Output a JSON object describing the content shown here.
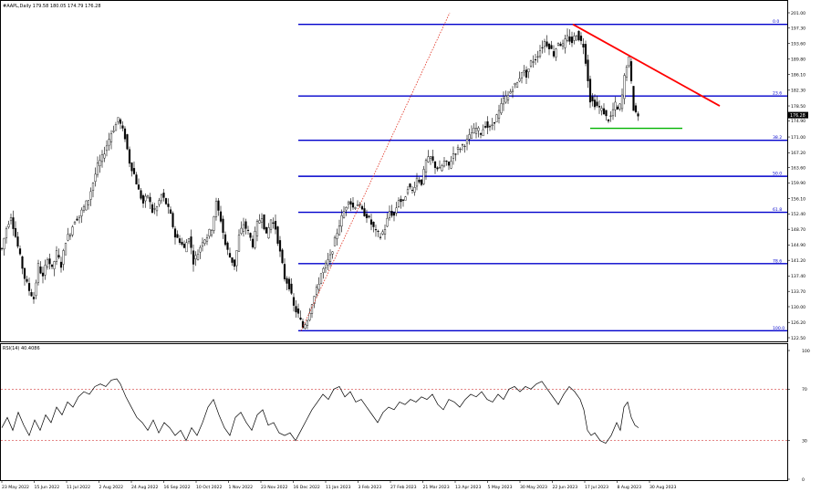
{
  "header": {
    "title": "#AAPL,Daily  179.58 180.05 174.79 176.28",
    "rsi_title": "RSI(14) 40.4086",
    "current_price": "176.28"
  },
  "chart_data": [
    {
      "type": "candlestick",
      "symbol": "#AAPL",
      "timeframe": "Daily",
      "ohlc_last": {
        "open": 179.58,
        "high": 180.05,
        "low": 174.79,
        "close": 176.28
      },
      "ylim": [
        122.5,
        201.0
      ],
      "y_ticks": [
        "201.00",
        "197.30",
        "193.60",
        "189.80",
        "186.10",
        "182.30",
        "178.50",
        "174.90",
        "171.00",
        "167.20",
        "163.60",
        "159.90",
        "156.10",
        "152.40",
        "148.70",
        "144.90",
        "141.20",
        "137.40",
        "133.70",
        "130.00",
        "126.20",
        "122.50"
      ],
      "x_ticks": [
        "23 May 2022",
        "15 Jun 2022",
        "11 Jul 2022",
        "2 Aug 2022",
        "24 Aug 2022",
        "16 Sep 2022",
        "10 Oct 2022",
        "1 Nov 2022",
        "23 Nov 2022",
        "16 Dec 2022",
        "11 Jan 2023",
        "3 Feb 2023",
        "27 Feb 2023",
        "21 Mar 2023",
        "13 Apr 2023",
        "5 May 2023",
        "30 May 2023",
        "22 Jun 2023",
        "17 Jul 2023",
        "8 Aug 2023",
        "30 Aug 2023"
      ],
      "price_path": [
        [
          0,
          144
        ],
        [
          5,
          149
        ],
        [
          10,
          152
        ],
        [
          15,
          147
        ],
        [
          20,
          142
        ],
        [
          25,
          137
        ],
        [
          30,
          134
        ],
        [
          35,
          132
        ],
        [
          40,
          140
        ],
        [
          45,
          137
        ],
        [
          50,
          142
        ],
        [
          55,
          139
        ],
        [
          60,
          143
        ],
        [
          65,
          140
        ],
        [
          70,
          146
        ],
        [
          75,
          148
        ],
        [
          80,
          151
        ],
        [
          85,
          152
        ],
        [
          90,
          154
        ],
        [
          95,
          156
        ],
        [
          100,
          160
        ],
        [
          105,
          164
        ],
        [
          110,
          166
        ],
        [
          115,
          169
        ],
        [
          120,
          172
        ],
        [
          125,
          174
        ],
        [
          128,
          176
        ],
        [
          130,
          174
        ],
        [
          135,
          171
        ],
        [
          140,
          165
        ],
        [
          145,
          162
        ],
        [
          150,
          158
        ],
        [
          155,
          155
        ],
        [
          160,
          157
        ],
        [
          165,
          153
        ],
        [
          170,
          154
        ],
        [
          175,
          157
        ],
        [
          180,
          155
        ],
        [
          185,
          152
        ],
        [
          190,
          147
        ],
        [
          195,
          146
        ],
        [
          200,
          144
        ],
        [
          205,
          147
        ],
        [
          210,
          141
        ],
        [
          215,
          143
        ],
        [
          220,
          146
        ],
        [
          225,
          147
        ],
        [
          230,
          149
        ],
        [
          235,
          155
        ],
        [
          240,
          151
        ],
        [
          245,
          145
        ],
        [
          250,
          142
        ],
        [
          255,
          140
        ],
        [
          260,
          147
        ],
        [
          265,
          150
        ],
        [
          270,
          148
        ],
        [
          275,
          145
        ],
        [
          280,
          150
        ],
        [
          285,
          152
        ],
        [
          290,
          147
        ],
        [
          295,
          151
        ],
        [
          300,
          149
        ],
        [
          305,
          143
        ],
        [
          310,
          137
        ],
        [
          315,
          135
        ],
        [
          320,
          130
        ],
        [
          325,
          128
        ],
        [
          330,
          125
        ],
        [
          335,
          127
        ],
        [
          340,
          131
        ],
        [
          345,
          134
        ],
        [
          350,
          138
        ],
        [
          355,
          140
        ],
        [
          360,
          142
        ],
        [
          365,
          146
        ],
        [
          370,
          150
        ],
        [
          375,
          153
        ],
        [
          380,
          156
        ],
        [
          385,
          154
        ],
        [
          390,
          155
        ],
        [
          395,
          153
        ],
        [
          400,
          152
        ],
        [
          405,
          150
        ],
        [
          410,
          148
        ],
        [
          415,
          147
        ],
        [
          420,
          149
        ],
        [
          425,
          153
        ],
        [
          430,
          152
        ],
        [
          435,
          156
        ],
        [
          440,
          155
        ],
        [
          445,
          159
        ],
        [
          450,
          158
        ],
        [
          455,
          161
        ],
        [
          460,
          160
        ],
        [
          465,
          165
        ],
        [
          470,
          166
        ],
        [
          475,
          164
        ],
        [
          480,
          163
        ],
        [
          485,
          165
        ],
        [
          490,
          164
        ],
        [
          495,
          167
        ],
        [
          500,
          168
        ],
        [
          505,
          169
        ],
        [
          510,
          170
        ],
        [
          515,
          172
        ],
        [
          520,
          173
        ],
        [
          525,
          172
        ],
        [
          530,
          174
        ],
        [
          535,
          173
        ],
        [
          540,
          175
        ],
        [
          545,
          177
        ],
        [
          550,
          180
        ],
        [
          555,
          181
        ],
        [
          560,
          183
        ],
        [
          565,
          184
        ],
        [
          570,
          187
        ],
        [
          575,
          186
        ],
        [
          580,
          189
        ],
        [
          585,
          190
        ],
        [
          590,
          192
        ],
        [
          595,
          194
        ],
        [
          600,
          193
        ],
        [
          605,
          191
        ],
        [
          610,
          194
        ],
        [
          615,
          193
        ],
        [
          620,
          195
        ],
        [
          625,
          194
        ],
        [
          630,
          196
        ],
        [
          635,
          194
        ],
        [
          638,
          193
        ],
        [
          642,
          186
        ],
        [
          645,
          180
        ],
        [
          650,
          179
        ],
        [
          655,
          178
        ],
        [
          660,
          177
        ],
        [
          664,
          175
        ],
        [
          668,
          176
        ],
        [
          672,
          179
        ],
        [
          676,
          177
        ],
        [
          680,
          181
        ],
        [
          684,
          188
        ],
        [
          688,
          190
        ],
        [
          690,
          184
        ],
        [
          692,
          178
        ],
        [
          695,
          177
        ],
        [
          698,
          176
        ]
      ],
      "resistance_trendline": {
        "x": [
          "17 Jul 2023",
          "Sep 2023"
        ],
        "y": [
          198.2,
          178.5
        ]
      },
      "support_line": {
        "y": 173.1
      },
      "fibonacci_levels": [
        {
          "label": "0.0",
          "price": 198.2
        },
        {
          "label": "23.6",
          "price": 180.9
        },
        {
          "label": "38.2",
          "price": 170.2
        },
        {
          "label": "50.0",
          "price": 161.5
        },
        {
          "label": "61.8",
          "price": 152.8
        },
        {
          "label": "78.6",
          "price": 140.4
        },
        {
          "label": "100.0",
          "price": 124.2
        }
      ],
      "fib_anchor_line": {
        "from_price": 124.2,
        "to_price": 198.2
      }
    },
    {
      "type": "line",
      "name": "RSI(14)",
      "value": 40.4086,
      "ylim": [
        0,
        100
      ],
      "levels": [
        70,
        30
      ],
      "y_ticks": [
        "100",
        "70",
        "30",
        "0"
      ],
      "rsi_path": [
        [
          0,
          40
        ],
        [
          6,
          48
        ],
        [
          12,
          38
        ],
        [
          18,
          52
        ],
        [
          24,
          42
        ],
        [
          30,
          34
        ],
        [
          36,
          46
        ],
        [
          42,
          38
        ],
        [
          48,
          50
        ],
        [
          54,
          44
        ],
        [
          60,
          56
        ],
        [
          66,
          50
        ],
        [
          72,
          60
        ],
        [
          78,
          56
        ],
        [
          84,
          64
        ],
        [
          90,
          68
        ],
        [
          96,
          66
        ],
        [
          102,
          72
        ],
        [
          108,
          74
        ],
        [
          114,
          72
        ],
        [
          120,
          77
        ],
        [
          126,
          78
        ],
        [
          130,
          74
        ],
        [
          136,
          64
        ],
        [
          142,
          56
        ],
        [
          148,
          48
        ],
        [
          154,
          44
        ],
        [
          160,
          38
        ],
        [
          166,
          46
        ],
        [
          172,
          36
        ],
        [
          178,
          44
        ],
        [
          184,
          40
        ],
        [
          190,
          34
        ],
        [
          196,
          38
        ],
        [
          202,
          30
        ],
        [
          208,
          40
        ],
        [
          214,
          34
        ],
        [
          220,
          44
        ],
        [
          226,
          56
        ],
        [
          232,
          62
        ],
        [
          238,
          50
        ],
        [
          244,
          40
        ],
        [
          250,
          34
        ],
        [
          256,
          48
        ],
        [
          262,
          52
        ],
        [
          268,
          44
        ],
        [
          274,
          38
        ],
        [
          280,
          50
        ],
        [
          286,
          54
        ],
        [
          292,
          42
        ],
        [
          298,
          44
        ],
        [
          304,
          36
        ],
        [
          310,
          34
        ],
        [
          316,
          36
        ],
        [
          322,
          30
        ],
        [
          328,
          38
        ],
        [
          334,
          46
        ],
        [
          340,
          54
        ],
        [
          346,
          60
        ],
        [
          352,
          66
        ],
        [
          358,
          62
        ],
        [
          364,
          70
        ],
        [
          370,
          72
        ],
        [
          376,
          64
        ],
        [
          382,
          68
        ],
        [
          388,
          60
        ],
        [
          394,
          62
        ],
        [
          400,
          56
        ],
        [
          406,
          50
        ],
        [
          412,
          44
        ],
        [
          418,
          52
        ],
        [
          424,
          56
        ],
        [
          430,
          54
        ],
        [
          436,
          60
        ],
        [
          442,
          58
        ],
        [
          448,
          62
        ],
        [
          454,
          60
        ],
        [
          460,
          64
        ],
        [
          466,
          62
        ],
        [
          472,
          66
        ],
        [
          478,
          58
        ],
        [
          484,
          54
        ],
        [
          490,
          62
        ],
        [
          496,
          60
        ],
        [
          502,
          56
        ],
        [
          508,
          62
        ],
        [
          514,
          66
        ],
        [
          520,
          64
        ],
        [
          526,
          68
        ],
        [
          532,
          62
        ],
        [
          538,
          60
        ],
        [
          544,
          66
        ],
        [
          550,
          62
        ],
        [
          556,
          70
        ],
        [
          562,
          72
        ],
        [
          568,
          68
        ],
        [
          574,
          72
        ],
        [
          580,
          70
        ],
        [
          586,
          74
        ],
        [
          592,
          76
        ],
        [
          598,
          70
        ],
        [
          604,
          64
        ],
        [
          610,
          58
        ],
        [
          616,
          66
        ],
        [
          622,
          72
        ],
        [
          628,
          68
        ],
        [
          634,
          62
        ],
        [
          638,
          54
        ],
        [
          642,
          38
        ],
        [
          646,
          34
        ],
        [
          650,
          36
        ],
        [
          656,
          30
        ],
        [
          662,
          28
        ],
        [
          668,
          34
        ],
        [
          674,
          44
        ],
        [
          678,
          38
        ],
        [
          682,
          56
        ],
        [
          686,
          60
        ],
        [
          690,
          48
        ],
        [
          694,
          42
        ],
        [
          698,
          40
        ]
      ]
    }
  ]
}
